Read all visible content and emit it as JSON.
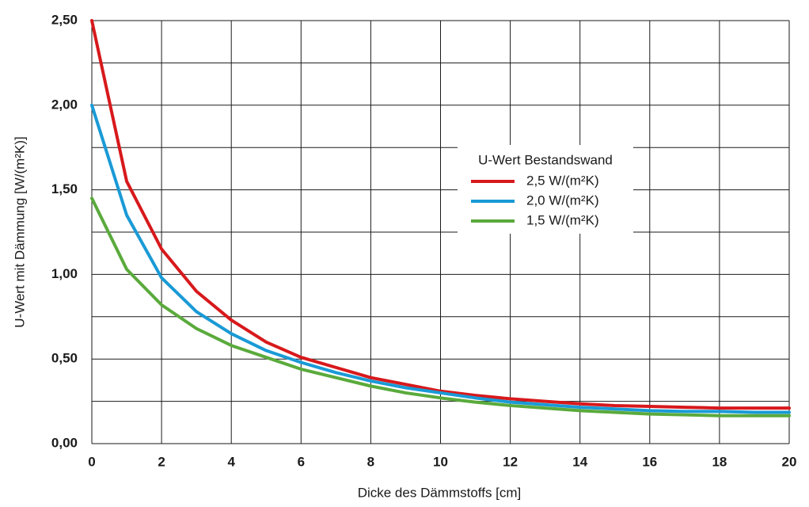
{
  "chart_data": {
    "type": "line",
    "x_label": "Dicke des Dämmstoffs [cm]",
    "y_label": "U-Wert mit Dämmung [W/(m²K)]",
    "legend_title": "U-Wert Bestandswand",
    "legend_position": "upper right",
    "grid": true,
    "x": [
      0,
      1,
      2,
      3,
      4,
      5,
      6,
      7,
      8,
      9,
      10,
      11,
      12,
      13,
      14,
      15,
      16,
      17,
      18,
      19,
      20
    ],
    "xlim": [
      0,
      20
    ],
    "xticks": [
      0,
      2,
      4,
      6,
      8,
      10,
      12,
      14,
      16,
      18,
      20
    ],
    "ylim": [
      0,
      2.5
    ],
    "yticks": [
      {
        "value": 0,
        "label": "0,00"
      },
      {
        "value": 0.5,
        "label": "0,50"
      },
      {
        "value": 1,
        "label": "1,00"
      },
      {
        "value": 1.5,
        "label": "1,50"
      },
      {
        "value": 2,
        "label": "2,00"
      },
      {
        "value": 2.5,
        "label": "2,50"
      }
    ],
    "minor_ygrid": [
      0.25,
      0.75,
      1.25,
      1.75,
      2.25
    ],
    "series": [
      {
        "name": "2,5 W/(m²K)",
        "color": "#d7191c",
        "values": [
          2.5,
          1.55,
          1.15,
          0.9,
          0.73,
          0.6,
          0.51,
          0.45,
          0.39,
          0.35,
          0.31,
          0.285,
          0.265,
          0.25,
          0.235,
          0.225,
          0.22,
          0.215,
          0.21,
          0.21,
          0.21
        ]
      },
      {
        "name": "2,0 W/(m²K)",
        "color": "#1a9ad6",
        "values": [
          2.0,
          1.35,
          0.98,
          0.78,
          0.65,
          0.55,
          0.48,
          0.42,
          0.37,
          0.33,
          0.3,
          0.27,
          0.245,
          0.23,
          0.215,
          0.205,
          0.195,
          0.19,
          0.19,
          0.185,
          0.185
        ]
      },
      {
        "name": "1,5 W/(m²K)",
        "color": "#5aaa3c",
        "values": [
          1.45,
          1.03,
          0.82,
          0.68,
          0.58,
          0.51,
          0.44,
          0.39,
          0.34,
          0.3,
          0.27,
          0.245,
          0.225,
          0.21,
          0.195,
          0.185,
          0.175,
          0.17,
          0.165,
          0.165,
          0.165
        ]
      }
    ]
  }
}
